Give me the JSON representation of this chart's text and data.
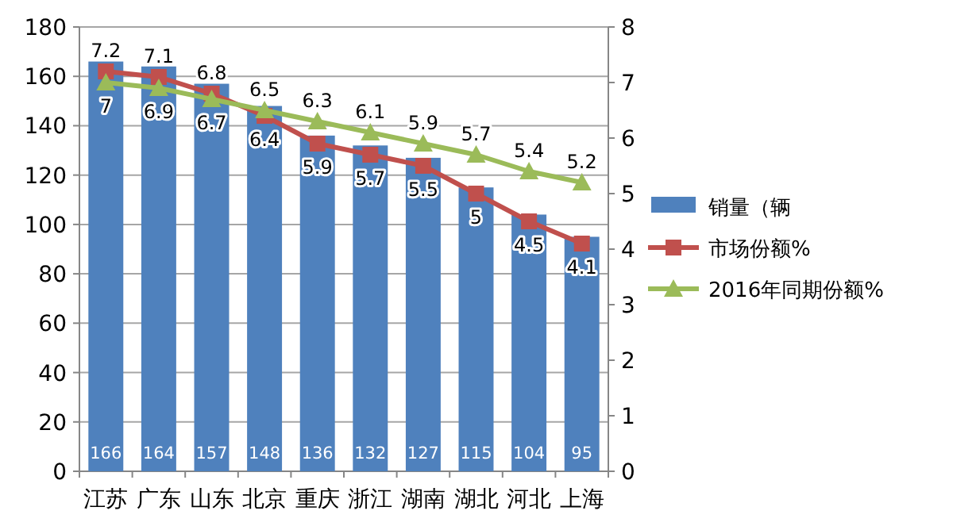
{
  "chart_data": {
    "type": "bar",
    "categories": [
      "江苏",
      "广东",
      "山东",
      "北京",
      "重庆",
      "浙江",
      "湖南",
      "湖北",
      "河北",
      "上海"
    ],
    "series": [
      {
        "name": "销量（辆",
        "color": "#4f81bd",
        "values": [
          166,
          164,
          157,
          148,
          136,
          132,
          127,
          115,
          104,
          95
        ]
      },
      {
        "name": "市场份额%",
        "type": "line",
        "axis": "y2",
        "marker": "square",
        "color": "#c0504d",
        "values": [
          7.2,
          7.1,
          6.8,
          6.4,
          5.9,
          5.7,
          5.5,
          5,
          4.5,
          4.1
        ]
      },
      {
        "name": "2016年同期份额%",
        "type": "line",
        "axis": "y2",
        "marker": "triangle",
        "color": "#9bbb59",
        "values": [
          7,
          6.9,
          6.7,
          6.5,
          6.3,
          6.1,
          5.9,
          5.7,
          5.4,
          5.2
        ]
      }
    ],
    "ylim": [
      0,
      180
    ],
    "yticks": [
      0,
      20,
      40,
      60,
      80,
      100,
      120,
      140,
      160,
      180
    ],
    "y2lim": [
      0,
      8
    ],
    "y2ticks": [
      0,
      1,
      2,
      3,
      4,
      5,
      6,
      7,
      8
    ],
    "grid": "y",
    "legend": "right",
    "data_labels": true
  }
}
